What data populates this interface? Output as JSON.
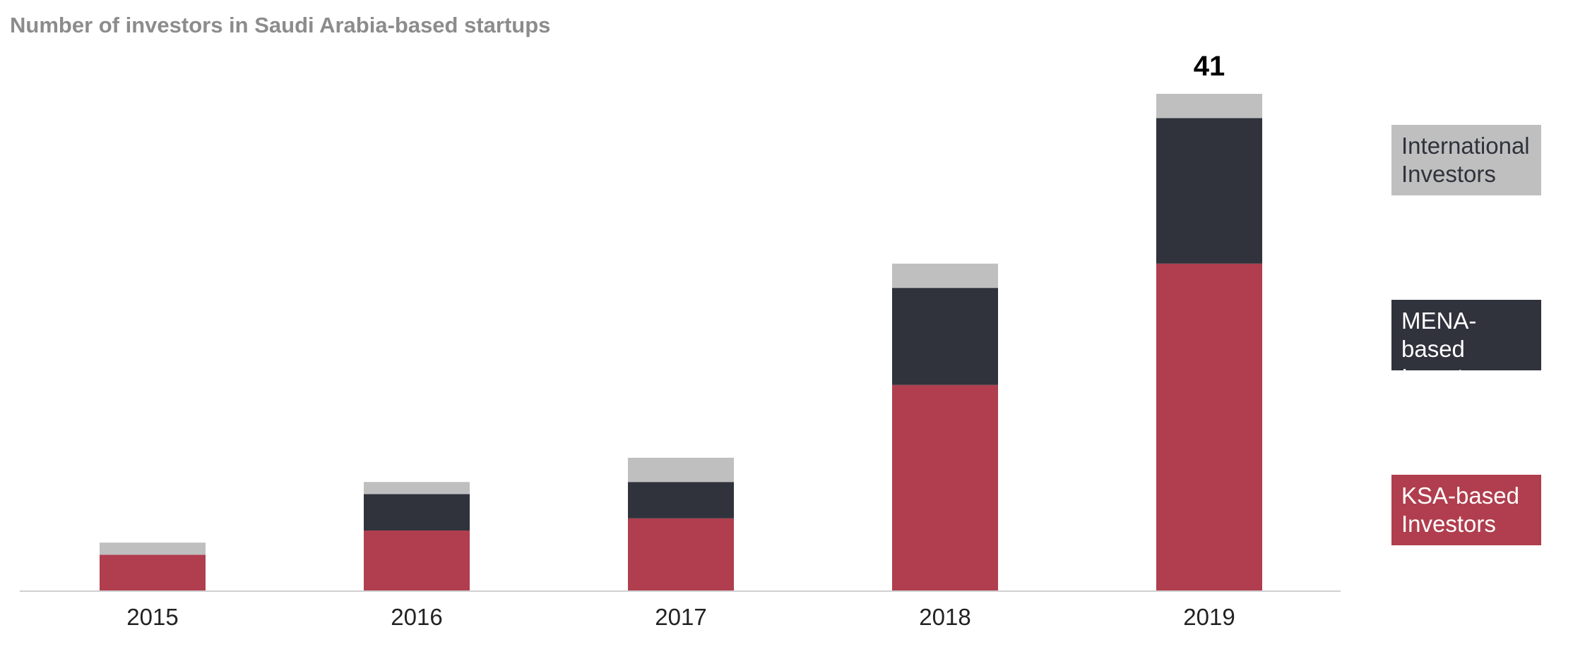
{
  "chart_data": {
    "type": "bar",
    "stacked": true,
    "title": "Number of investors in Saudi Arabia-based startups",
    "categories": [
      "2015",
      "2016",
      "2017",
      "2018",
      "2019"
    ],
    "series": [
      {
        "name": "KSA-based Investors",
        "color": "#b03e4e",
        "values": [
          3,
          5,
          6,
          17,
          27
        ]
      },
      {
        "name": "MENA-based Investors",
        "color": "#30323c",
        "values": [
          0,
          3,
          3,
          8,
          12
        ]
      },
      {
        "name": "International Investors",
        "color": "#bfbfbf",
        "values": [
          1,
          1,
          2,
          2,
          2
        ]
      }
    ],
    "annotations": [
      {
        "category": "2019",
        "text": "41"
      }
    ],
    "ylim": [
      0,
      41
    ],
    "grid": false,
    "legend_position": "right"
  }
}
